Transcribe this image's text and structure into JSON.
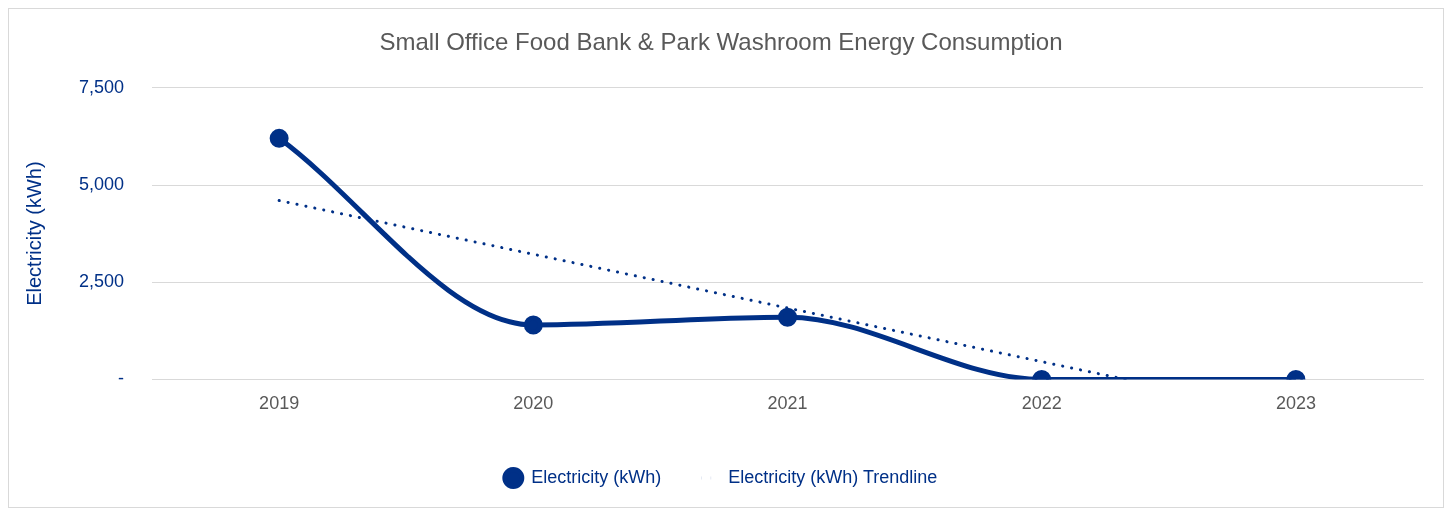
{
  "chart_data": {
    "type": "line",
    "title": "Small Office Food Bank & Park Washroom Energy Consumption",
    "ylabel": "Electricity (kWh)",
    "x": [
      2019,
      2020,
      2021,
      2022,
      2023
    ],
    "xlim": [
      2018.5,
      2023.5
    ],
    "xticks": [
      2019,
      2020,
      2021,
      2022,
      2023
    ],
    "ylim": [
      0,
      7500
    ],
    "yticks": [
      {
        "value": 0,
        "label": "-"
      },
      {
        "value": 2500,
        "label": "2,500"
      },
      {
        "value": 5000,
        "label": "5,000"
      },
      {
        "value": 7500,
        "label": "7,500"
      }
    ],
    "grid": "y",
    "legend": "bottom",
    "series": [
      {
        "name": "Electricity (kWh)",
        "color": "#003087",
        "values": [
          6200,
          1400,
          1600,
          0,
          0
        ],
        "marker": "circle",
        "line_style": "solid"
      },
      {
        "name": "Electricity (kWh) Trendline",
        "color": "#003087",
        "x": [
          2019,
          2022.33
        ],
        "values": [
          4600,
          0
        ],
        "marker": "none",
        "line_style": "dotted"
      }
    ]
  }
}
